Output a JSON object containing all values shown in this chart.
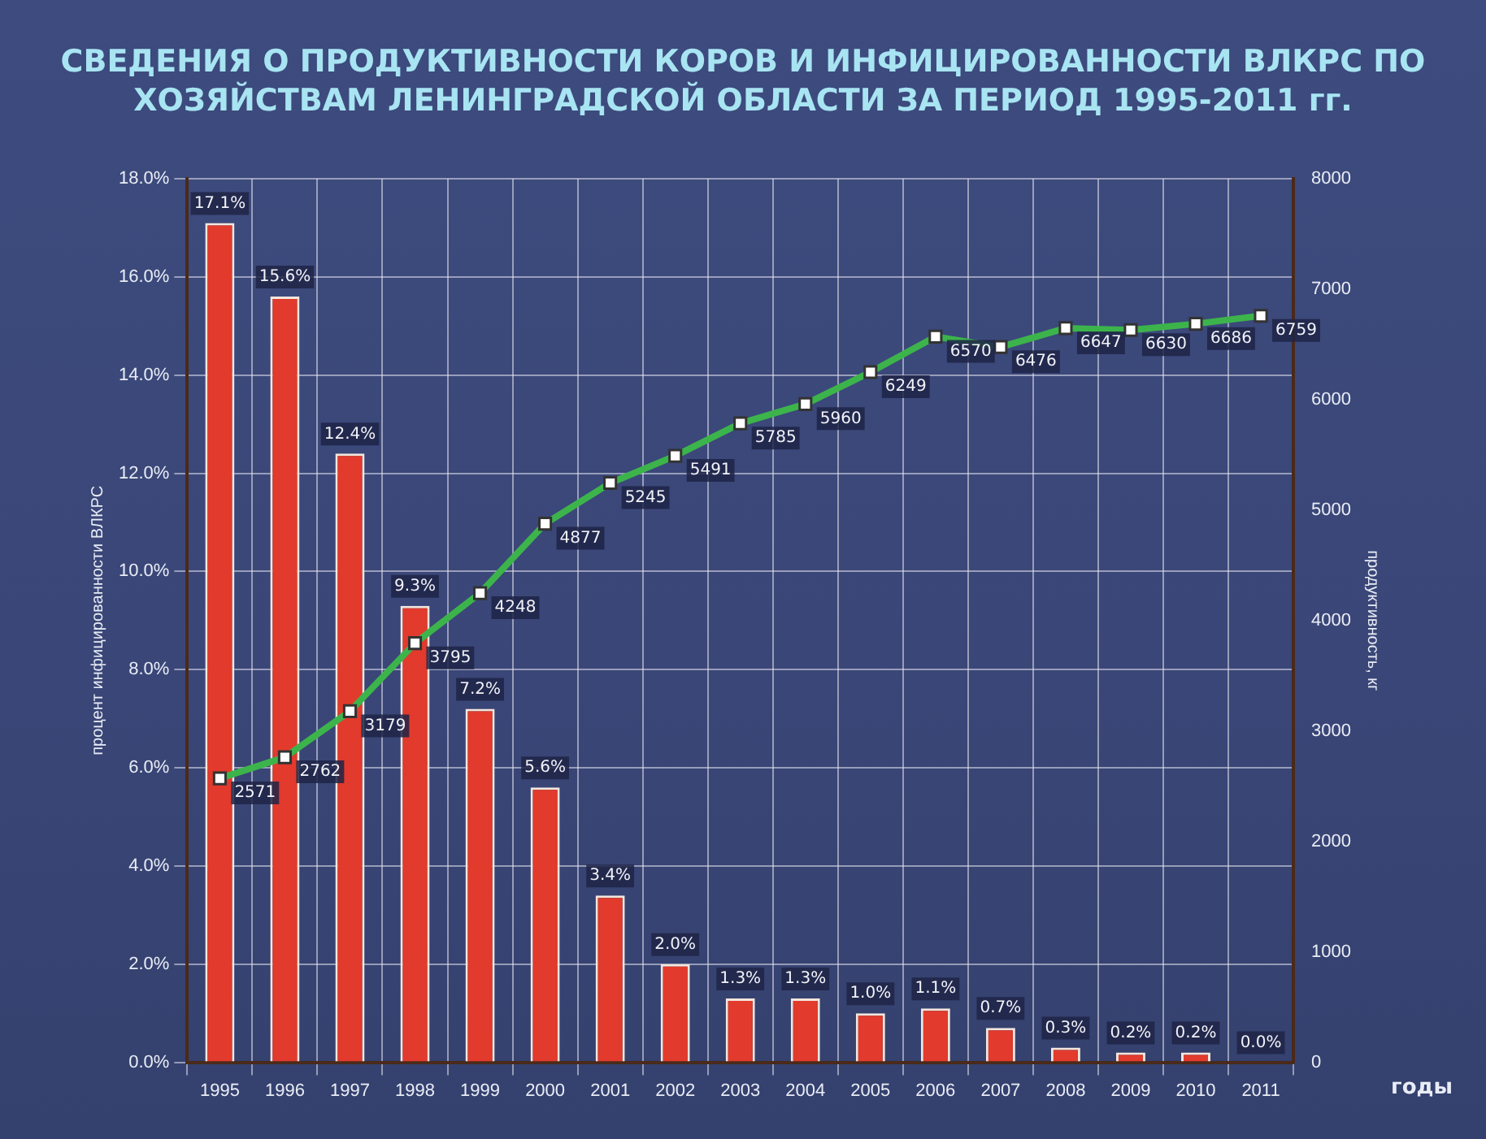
{
  "chart_data": {
    "type": "bar",
    "title": "СВЕДЕНИЯ О ПРОДУКТИВНОСТИ КОРОВ И ИНФИЦИРОВАННОСТИ ВЛКРС ПО ХОЗЯЙСТВАМ ЛЕНИНГРАДСКОЙ ОБЛАСТИ ЗА ПЕРИОД 1995-2011 гг.",
    "xlabel": "годы",
    "ylabel": "процент инфицированности ВЛКРС",
    "y2label": "продуктивность, кг",
    "categories": [
      "1995",
      "1996",
      "1997",
      "1998",
      "1999",
      "2000",
      "2001",
      "2002",
      "2003",
      "2004",
      "2005",
      "2006",
      "2007",
      "2008",
      "2009",
      "2010",
      "2011"
    ],
    "series": [
      {
        "color": "#e23a2c",
        "values": [
          17.1,
          15.6,
          12.4,
          9.3,
          7.2,
          5.6,
          3.4,
          2.0,
          1.3,
          1.3,
          1.0,
          1.1,
          0.7,
          0.3,
          0.2,
          0.2,
          0.0
        ],
        "value_labels": [
          "17.1%",
          "15.6%",
          "12.4%",
          "9.3%",
          "7.2%",
          "5.6%",
          "3.4%",
          "2.0%",
          "1.3%",
          "1.3%",
          "1.0%",
          "1.1%",
          "0.7%",
          "0.3%",
          "0.2%",
          "0.2%",
          "0.0%"
        ]
      },
      {
        "type": "line",
        "axis": "y2",
        "color": "#3cb44b",
        "marker": "square",
        "values": [
          2571,
          2762,
          3179,
          3795,
          4248,
          4877,
          5245,
          5491,
          5785,
          5960,
          6249,
          6570,
          6476,
          6647,
          6630,
          6686,
          6759
        ],
        "value_labels": [
          "2571",
          "2762",
          "3179",
          "3795",
          "4248",
          "4877",
          "5245",
          "5491",
          "5785",
          "5960",
          "6249",
          "6570",
          "6476",
          "6647",
          "6630",
          "6686",
          "6759"
        ]
      }
    ],
    "ylim": [
      0,
      18
    ],
    "yticks": [
      {
        "value": 0,
        "label": "0.0%"
      },
      {
        "value": 2,
        "label": "2.0%"
      },
      {
        "value": 4,
        "label": "4.0%"
      },
      {
        "value": 6,
        "label": "6.0%"
      },
      {
        "value": 8,
        "label": "8.0%"
      },
      {
        "value": 10,
        "label": "10.0%"
      },
      {
        "value": 12,
        "label": "12.0%"
      },
      {
        "value": 14,
        "label": "14.0%"
      },
      {
        "value": 16,
        "label": "16.0%"
      },
      {
        "value": 18,
        "label": "18.0%"
      }
    ],
    "y2lim": [
      0,
      8000
    ],
    "y2ticks": [
      0,
      1000,
      2000,
      3000,
      4000,
      5000,
      6000,
      7000,
      8000
    ],
    "grid": true,
    "legend": false
  }
}
